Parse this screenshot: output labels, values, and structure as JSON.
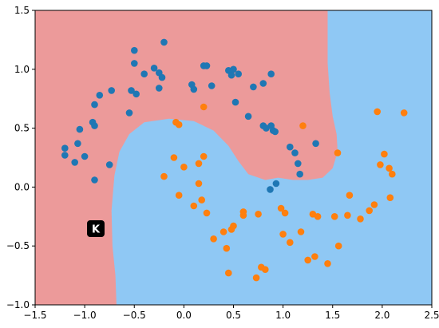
{
  "toolbar": {
    "hud_icon": "interaction-hud-icon",
    "hud_glyph": "K"
  },
  "colors": {
    "region_class_0": "#ec9a9a",
    "region_class_1": "#8fc8f4",
    "point_class_0": "#1f77b4",
    "point_class_1": "#ff7f0e"
  },
  "chart_data": {
    "type": "scatter",
    "title": "",
    "xlabel": "",
    "ylabel": "",
    "xlim": [
      -1.5,
      2.5
    ],
    "ylim": [
      -1.0,
      1.5
    ],
    "xticks": [
      -1.5,
      -1.0,
      -0.5,
      0.0,
      0.5,
      1.0,
      1.5,
      2.0,
      2.5
    ],
    "yticks": [
      -1.0,
      -0.5,
      0.0,
      0.5,
      1.0,
      1.5
    ],
    "xtick_labels": [
      "−1.5",
      "−1.0",
      "−0.5",
      "0.0",
      "0.5",
      "1.0",
      "1.5",
      "2.0",
      "2.5"
    ],
    "ytick_labels": [
      "−1.0",
      "−0.5",
      "0.0",
      "0.5",
      "1.0",
      "1.5"
    ],
    "grid": false,
    "background": "decision-regions",
    "regions": [
      {
        "class": 0,
        "fill_key": "region_class_0"
      },
      {
        "class": 1,
        "fill_key": "region_class_1"
      }
    ],
    "decision_boundary": [
      [
        1.45,
        1.5
      ],
      [
        1.45,
        1.3
      ],
      [
        1.45,
        1.05
      ],
      [
        1.47,
        0.8
      ],
      [
        1.5,
        0.6
      ],
      [
        1.54,
        0.45
      ],
      [
        1.55,
        0.3
      ],
      [
        1.5,
        0.16
      ],
      [
        1.4,
        0.08
      ],
      [
        1.25,
        0.06
      ],
      [
        1.1,
        0.06
      ],
      [
        0.95,
        0.08
      ],
      [
        0.82,
        0.06
      ],
      [
        0.65,
        0.11
      ],
      [
        0.55,
        0.22
      ],
      [
        0.45,
        0.35
      ],
      [
        0.3,
        0.48
      ],
      [
        0.1,
        0.56
      ],
      [
        -0.15,
        0.58
      ],
      [
        -0.4,
        0.55
      ],
      [
        -0.55,
        0.45
      ],
      [
        -0.65,
        0.3
      ],
      [
        -0.7,
        0.1
      ],
      [
        -0.73,
        -0.2
      ],
      [
        -0.72,
        -0.5
      ],
      [
        -0.69,
        -0.75
      ],
      [
        -0.68,
        -1.0
      ]
    ],
    "series": [
      {
        "class": 0,
        "color_key": "point_class_0",
        "points": [
          [
            -1.2,
            0.33
          ],
          [
            -1.2,
            0.27
          ],
          [
            -1.1,
            0.21
          ],
          [
            -1.07,
            0.37
          ],
          [
            -1.05,
            0.49
          ],
          [
            -1.0,
            0.26
          ],
          [
            -0.92,
            0.55
          ],
          [
            -0.9,
            0.52
          ],
          [
            -0.9,
            0.7
          ],
          [
            -0.9,
            0.06
          ],
          [
            -0.85,
            0.78
          ],
          [
            -0.75,
            0.19
          ],
          [
            -0.73,
            0.82
          ],
          [
            -0.55,
            0.63
          ],
          [
            -0.53,
            0.82
          ],
          [
            -0.5,
            1.16
          ],
          [
            -0.5,
            1.05
          ],
          [
            -0.48,
            0.79
          ],
          [
            -0.4,
            0.96
          ],
          [
            -0.3,
            1.01
          ],
          [
            -0.25,
            0.97
          ],
          [
            -0.25,
            0.84
          ],
          [
            -0.22,
            0.93
          ],
          [
            -0.2,
            1.23
          ],
          [
            0.08,
            0.87
          ],
          [
            0.1,
            0.83
          ],
          [
            0.2,
            1.03
          ],
          [
            0.23,
            1.03
          ],
          [
            0.28,
            0.86
          ],
          [
            0.45,
            0.99
          ],
          [
            0.48,
            0.95
          ],
          [
            0.5,
            1.0
          ],
          [
            0.52,
            0.72
          ],
          [
            0.55,
            0.96
          ],
          [
            0.65,
            0.6
          ],
          [
            0.7,
            0.85
          ],
          [
            0.8,
            0.88
          ],
          [
            0.8,
            0.52
          ],
          [
            0.83,
            0.5
          ],
          [
            0.88,
            0.96
          ],
          [
            0.88,
            0.52
          ],
          [
            0.9,
            0.48
          ],
          [
            0.92,
            0.47
          ],
          [
            0.87,
            -0.02
          ],
          [
            0.93,
            0.03
          ],
          [
            1.07,
            0.34
          ],
          [
            1.12,
            0.29
          ],
          [
            1.15,
            0.2
          ],
          [
            1.17,
            0.11
          ],
          [
            1.33,
            0.37
          ]
        ]
      },
      {
        "class": 1,
        "color_key": "point_class_1",
        "points": [
          [
            -0.2,
            0.09
          ],
          [
            -0.1,
            0.25
          ],
          [
            -0.08,
            0.55
          ],
          [
            -0.05,
            -0.07
          ],
          [
            -0.05,
            0.53
          ],
          [
            0.0,
            0.17
          ],
          [
            0.1,
            -0.16
          ],
          [
            0.15,
            0.2
          ],
          [
            0.15,
            0.03
          ],
          [
            0.18,
            -0.11
          ],
          [
            0.2,
            0.26
          ],
          [
            0.2,
            0.68
          ],
          [
            0.23,
            -0.22
          ],
          [
            0.3,
            -0.44
          ],
          [
            0.4,
            -0.38
          ],
          [
            0.43,
            -0.52
          ],
          [
            0.45,
            -0.73
          ],
          [
            0.48,
            -0.36
          ],
          [
            0.5,
            -0.33
          ],
          [
            0.6,
            -0.21
          ],
          [
            0.6,
            -0.24
          ],
          [
            0.73,
            -0.77
          ],
          [
            0.75,
            -0.23
          ],
          [
            0.78,
            -0.68
          ],
          [
            0.82,
            -0.7
          ],
          [
            0.98,
            -0.18
          ],
          [
            1.0,
            -0.4
          ],
          [
            1.02,
            -0.22
          ],
          [
            1.07,
            -0.47
          ],
          [
            1.18,
            -0.38
          ],
          [
            1.2,
            0.52
          ],
          [
            1.25,
            -0.62
          ],
          [
            1.3,
            -0.23
          ],
          [
            1.32,
            -0.59
          ],
          [
            1.35,
            -0.25
          ],
          [
            1.45,
            -0.65
          ],
          [
            1.52,
            -0.25
          ],
          [
            1.55,
            0.29
          ],
          [
            1.56,
            -0.5
          ],
          [
            1.65,
            -0.24
          ],
          [
            1.67,
            -0.07
          ],
          [
            1.78,
            -0.27
          ],
          [
            1.87,
            -0.2
          ],
          [
            1.92,
            -0.15
          ],
          [
            1.95,
            0.64
          ],
          [
            1.98,
            0.19
          ],
          [
            2.02,
            0.28
          ],
          [
            2.07,
            0.16
          ],
          [
            2.08,
            -0.09
          ],
          [
            2.1,
            0.11
          ],
          [
            2.22,
            0.63
          ]
        ]
      }
    ]
  }
}
